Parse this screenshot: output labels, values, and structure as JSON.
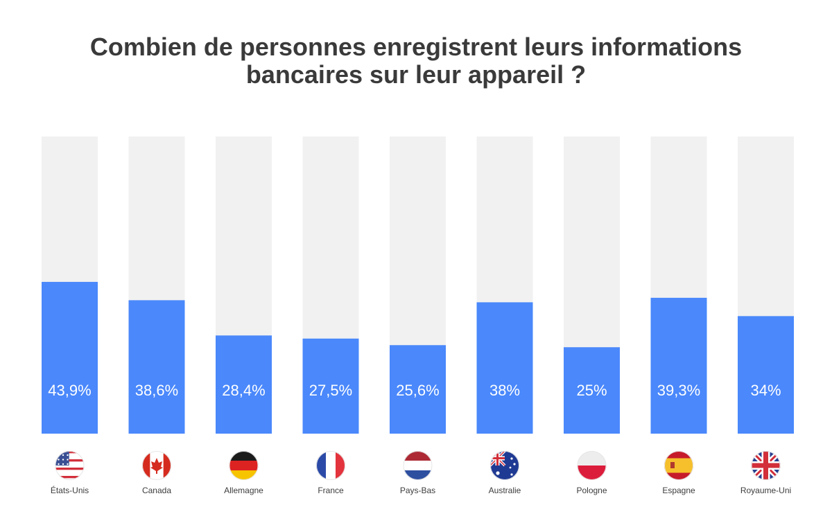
{
  "title_lines": [
    "Combien de personnes enregistrent leurs informations",
    "bancaires sur leur appareil ?"
  ],
  "colors": {
    "bar": "#4a88fb",
    "track": "#f1f1f1",
    "label": "#ffffff"
  },
  "chart_data": {
    "type": "bar",
    "title": "Combien de personnes enregistrent leurs informations bancaires sur leur appareil ?",
    "categories": [
      "États-Unis",
      "Canada",
      "Allemagne",
      "France",
      "Pays-Bas",
      "Australie",
      "Pologne",
      "Espagne",
      "Royaume-Uni"
    ],
    "values": [
      43.9,
      38.6,
      28.4,
      27.5,
      25.6,
      38,
      25,
      39.3,
      34
    ],
    "value_labels": [
      "43,9%",
      "38,6%",
      "28,4%",
      "27,5%",
      "25,6%",
      "38%",
      "25%",
      "39,3%",
      "34%"
    ],
    "category_icons": [
      "flag-us-icon",
      "flag-canada-icon",
      "flag-germany-icon",
      "flag-france-icon",
      "flag-netherlands-icon",
      "flag-australia-icon",
      "flag-poland-icon",
      "flag-spain-icon",
      "flag-uk-icon"
    ],
    "ylim": [
      0,
      100
    ],
    "grid": false,
    "legend": "none"
  }
}
